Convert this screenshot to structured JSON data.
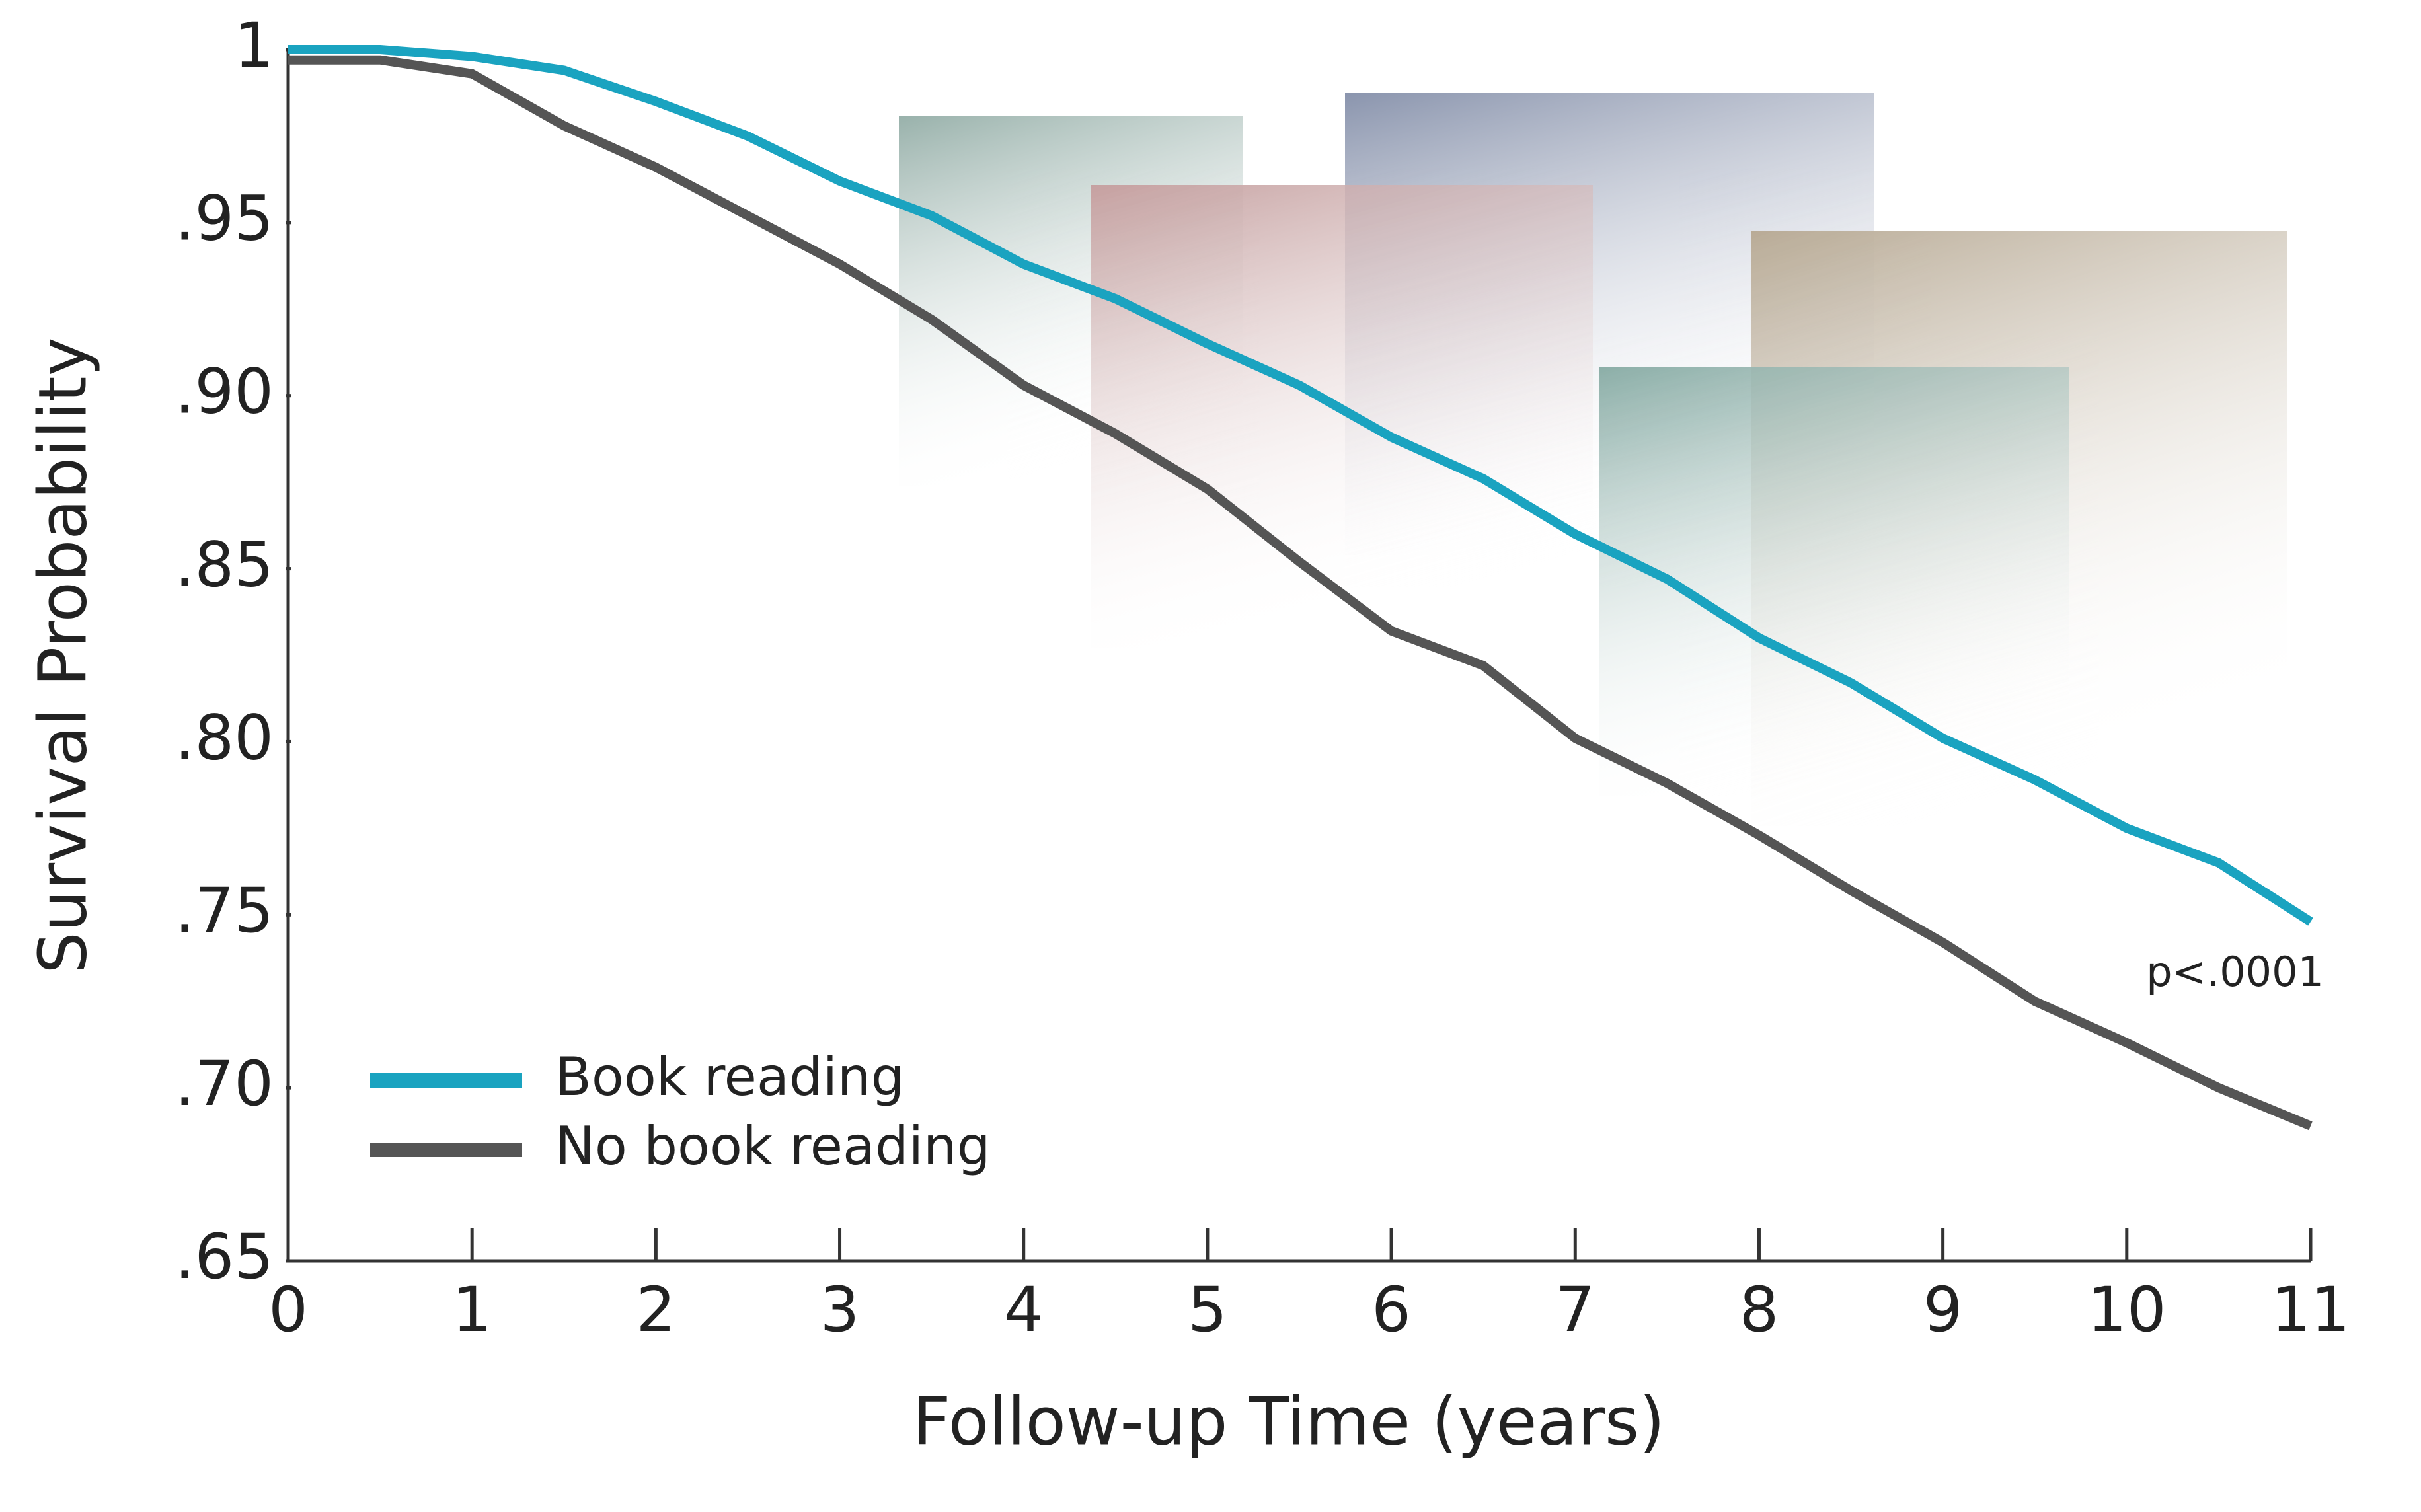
{
  "chart_data": {
    "type": "line",
    "x_label": "Follow-up Time (years)",
    "y_label": "Survival Probability",
    "annotation": "p<.0001",
    "x": [
      0,
      0.5,
      1,
      1.5,
      2,
      2.5,
      3,
      3.5,
      4,
      4.5,
      5,
      5.5,
      6,
      6.5,
      7,
      7.5,
      8,
      8.5,
      9,
      9.5,
      10,
      10.5,
      11
    ],
    "series": [
      {
        "name": "Book reading",
        "color": "#1aa3c0",
        "values": [
          1,
          1,
          0.998,
          0.994,
          0.985,
          0.975,
          0.962,
          0.952,
          0.938,
          0.928,
          0.915,
          0.903,
          0.888,
          0.876,
          0.86,
          0.847,
          0.83,
          0.817,
          0.801,
          0.789,
          0.775,
          0.765,
          0.748
        ]
      },
      {
        "name": "No book reading",
        "color": "#555555",
        "values": [
          0.997,
          0.997,
          0.993,
          0.978,
          0.966,
          0.952,
          0.938,
          0.922,
          0.903,
          0.889,
          0.873,
          0.852,
          0.832,
          0.822,
          0.801,
          0.788,
          0.773,
          0.757,
          0.742,
          0.725,
          0.713,
          0.7,
          0.689
        ]
      }
    ],
    "xlim": [
      0,
      11
    ],
    "ylim": [
      0.65,
      1
    ],
    "xticks": [
      0,
      1,
      2,
      3,
      4,
      5,
      6,
      7,
      8,
      9,
      10,
      11
    ],
    "yticks": [
      1,
      {
        "value": 0.95,
        "label": ".95"
      },
      {
        "value": 0.9,
        "label": ".90"
      },
      {
        "value": 0.85,
        "label": ".85"
      },
      {
        "value": 0.8,
        "label": ".80"
      },
      {
        "value": 0.75,
        "label": ".75"
      },
      {
        "value": 0.7,
        "label": ".70"
      },
      {
        "value": 0.65,
        "label": ".65"
      }
    ],
    "legend": "lower left"
  }
}
